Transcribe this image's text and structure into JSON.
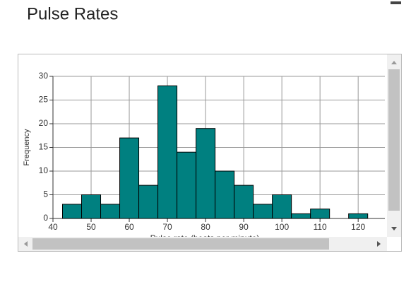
{
  "chart_data": {
    "type": "histogram",
    "title": "Pulse Rates",
    "xlabel": "Pulse rate (beats per minute)",
    "ylabel": "Frequency",
    "bins": [
      42.5,
      47.5,
      52.5,
      57.5,
      62.5,
      67.5,
      72.5,
      77.5,
      82.5,
      87.5,
      92.5,
      97.5,
      102.5,
      107.5,
      112.5,
      117.5,
      122.5
    ],
    "values": [
      3,
      5,
      3,
      17,
      7,
      28,
      14,
      19,
      10,
      7,
      3,
      5,
      1,
      2,
      0,
      1
    ],
    "color": "#008080",
    "xlim": [
      40,
      127
    ],
    "xticks": [
      40,
      50,
      60,
      70,
      80,
      90,
      100,
      110,
      120
    ],
    "ylim": [
      0,
      30
    ],
    "yticks": [
      0,
      5,
      10,
      15,
      20,
      25,
      30
    ],
    "grid": true
  }
}
